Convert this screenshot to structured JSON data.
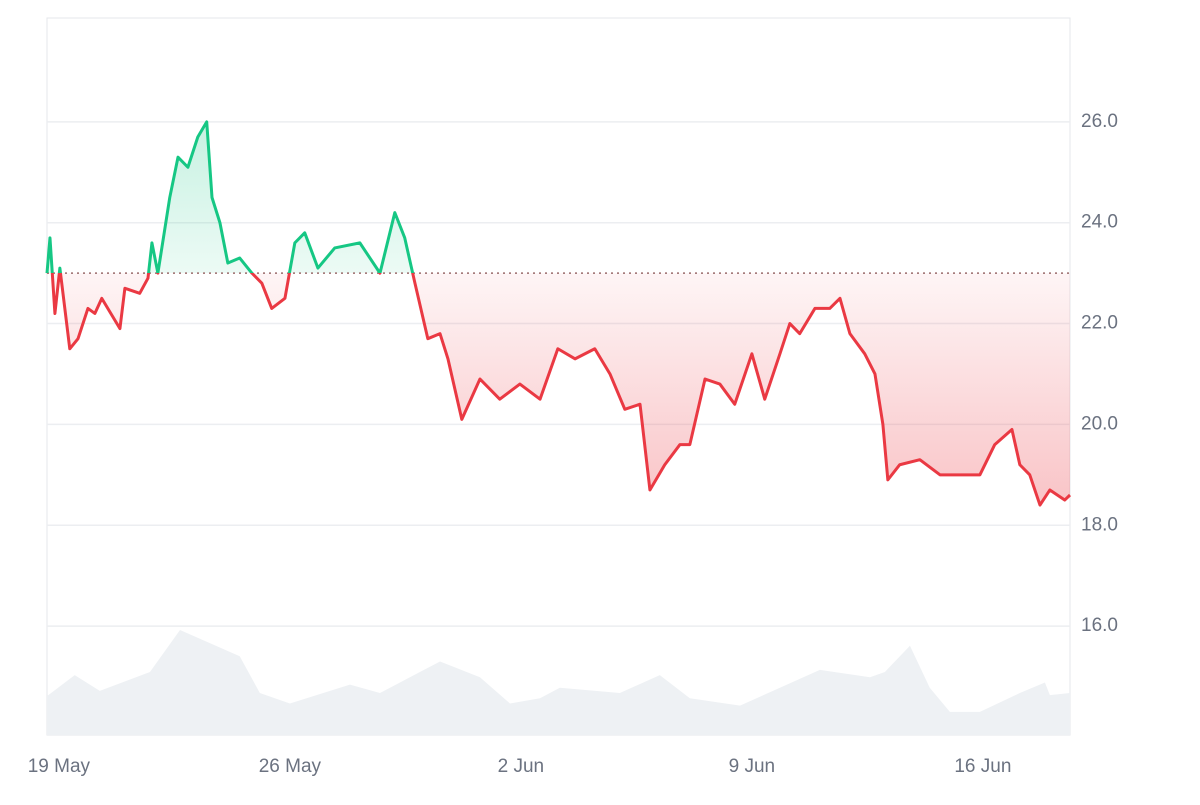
{
  "chart_data": {
    "type": "baseline",
    "x": [
      -0.36,
      -0.27,
      -0.12,
      0.03,
      0.33,
      0.58,
      0.88,
      1.09,
      1.3,
      1.85,
      2.0,
      2.45,
      2.7,
      2.82,
      3.0,
      3.36,
      3.61,
      3.91,
      4.21,
      4.48,
      4.64,
      4.88,
      5.12,
      5.48,
      5.85,
      6.15,
      6.45,
      6.85,
      7.15,
      7.45,
      7.85,
      8.36,
      9.12,
      9.73,
      10.18,
      10.48,
      10.79,
      11.18,
      11.55,
      11.79,
      12.21,
      12.76,
      13.36,
      13.97,
      14.58,
      15.12,
      15.64,
      16.24,
      16.7,
      17.15,
      17.61,
      17.91,
      18.36,
      18.82,
      19.12,
      19.58,
      20.03,
      20.48,
      21.0,
      21.39,
      21.85,
      22.15,
      22.45,
      22.91,
      23.36,
      23.67,
      23.97,
      24.42,
      24.73,
      24.97,
      25.12,
      25.48,
      26.09,
      26.7,
      27.3,
      27.91,
      28.36,
      28.88,
      29.12,
      29.42,
      29.73,
      30.03,
      30.48,
      30.64
    ],
    "values": [
      23.0,
      23.7,
      22.2,
      23.1,
      21.5,
      21.7,
      22.3,
      22.2,
      22.5,
      21.9,
      22.7,
      22.6,
      22.9,
      23.6,
      23.0,
      24.5,
      25.3,
      25.1,
      25.7,
      26.0,
      24.5,
      24.0,
      23.2,
      23.3,
      23.0,
      22.8,
      22.3,
      22.5,
      23.6,
      23.8,
      23.1,
      23.5,
      23.6,
      23.0,
      24.2,
      23.7,
      22.8,
      21.7,
      21.8,
      21.3,
      20.1,
      20.9,
      20.5,
      20.8,
      20.5,
      21.5,
      21.3,
      21.5,
      21.0,
      20.3,
      20.4,
      18.7,
      19.2,
      19.6,
      19.6,
      20.9,
      20.8,
      20.4,
      21.4,
      20.5,
      21.4,
      22.0,
      21.8,
      22.3,
      22.3,
      22.5,
      21.8,
      21.4,
      21.0,
      20.0,
      18.9,
      19.2,
      19.3,
      19.0,
      19.0,
      19.0,
      19.6,
      19.9,
      19.2,
      19.0,
      18.4,
      18.7,
      18.5,
      18.6
    ],
    "baseline": 23.0,
    "up_color": "#16c784",
    "down_color": "#ea3943",
    "volume": {
      "x": [
        -0.36,
        0.48,
        1.24,
        2.76,
        3.67,
        5.48,
        6.09,
        7.0,
        8.82,
        9.73,
        10.94,
        11.55,
        12.76,
        13.67,
        14.58,
        15.18,
        17.0,
        18.21,
        19.12,
        20.64,
        21.85,
        23.06,
        24.58,
        25.03,
        25.79,
        26.39,
        27.0,
        27.91,
        29.12,
        29.88,
        30.03,
        30.64
      ],
      "values": [
        37,
        57,
        42,
        60,
        100,
        75,
        40,
        30,
        48,
        40,
        60,
        70,
        55,
        30,
        35,
        45,
        40,
        57,
        35,
        28,
        45,
        62,
        55,
        60,
        85,
        45,
        22,
        22,
        40,
        50,
        38,
        40
      ],
      "color": "#eef1f4"
    },
    "xlim": [
      -0.36,
      30.64
    ],
    "xticks": [
      {
        "value": 0,
        "label": "19 May"
      },
      {
        "value": 7,
        "label": "26 May"
      },
      {
        "value": 14,
        "label": "2 Jun"
      },
      {
        "value": 21,
        "label": "9 Jun"
      },
      {
        "value": 28,
        "label": "16 Jun"
      }
    ],
    "ylim": [
      13.84,
      28.06
    ],
    "yticks": [
      {
        "value": 16,
        "label": "16.0"
      },
      {
        "value": 18,
        "label": "18.0"
      },
      {
        "value": 20,
        "label": "20.0"
      },
      {
        "value": 22,
        "label": "22.0"
      },
      {
        "value": 24,
        "label": "24.0"
      },
      {
        "value": 26,
        "label": "26.0"
      }
    ],
    "grid": true
  }
}
